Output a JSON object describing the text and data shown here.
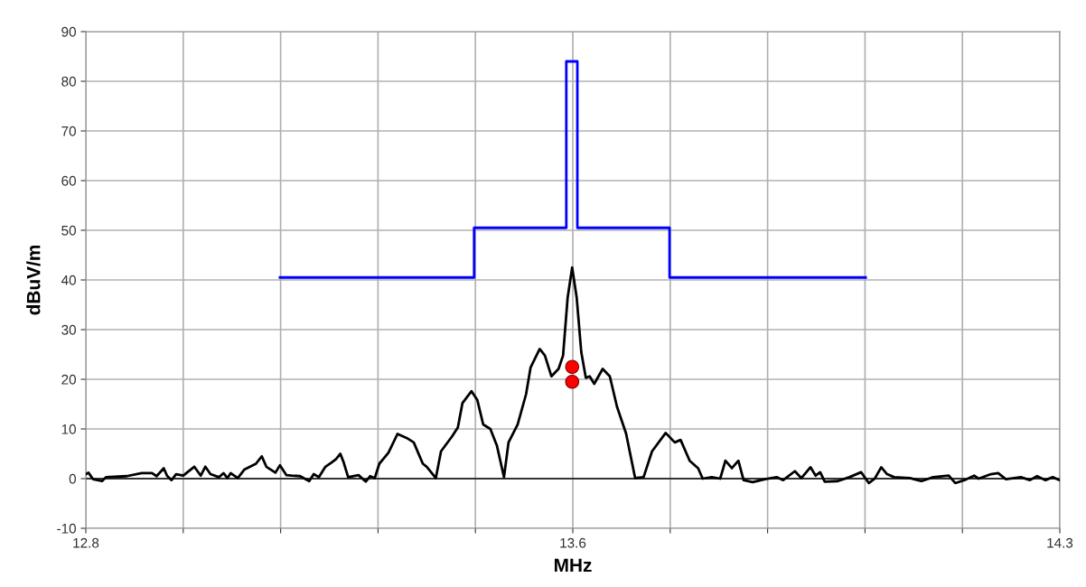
{
  "chart_data": {
    "type": "line",
    "xlabel": "MHz",
    "ylabel": "dBuV/m",
    "xlim": [
      12.8,
      14.3
    ],
    "xticks": [
      12.8,
      {
        "value": 12.95,
        "label": null
      },
      {
        "value": 13.1,
        "label": null
      },
      {
        "value": 13.25,
        "label": null
      },
      {
        "value": 13.4,
        "label": null
      },
      {
        "value": 13.55,
        "label": "13.6"
      },
      {
        "value": 13.7,
        "label": null
      },
      {
        "value": 13.85,
        "label": null
      },
      {
        "value": 14.0,
        "label": null
      },
      {
        "value": 14.15,
        "label": null
      },
      14.3
    ],
    "ylim": [
      -10,
      90
    ],
    "yticks": [
      -10,
      0,
      10,
      20,
      30,
      40,
      50,
      60,
      70,
      80,
      90
    ],
    "grid": true,
    "ref_lines": [
      {
        "axis": "y",
        "value": 0,
        "color": "#333333"
      }
    ],
    "series": [
      {
        "type": "step",
        "color": "#0000ff",
        "x": [
          13.099,
          13.398,
          13.54,
          13.557,
          13.699,
          14.001
        ],
        "values": [
          40.5,
          50.5,
          84,
          50.5,
          40.5,
          40.5
        ]
      },
      {
        "color": "#000000",
        "x": [
          12.8,
          12.804,
          12.811,
          12.825,
          12.831,
          12.863,
          12.886,
          12.902,
          12.909,
          12.92,
          12.925,
          12.932,
          12.939,
          12.95,
          12.967,
          12.977,
          12.984,
          12.992,
          13.005,
          13.012,
          13.018,
          13.023,
          13.034,
          13.044,
          13.053,
          13.062,
          13.071,
          13.078,
          13.085,
          13.092,
          13.099,
          13.109,
          13.117,
          13.13,
          13.144,
          13.151,
          13.159,
          13.169,
          13.178,
          13.185,
          13.192,
          13.197,
          13.204,
          13.22,
          13.231,
          13.238,
          13.245,
          13.252,
          13.266,
          13.28,
          13.294,
          13.305,
          13.319,
          13.325,
          13.339,
          13.347,
          13.364,
          13.373,
          13.38,
          13.394,
          13.403,
          13.412,
          13.423,
          13.433,
          13.444,
          13.451,
          13.465,
          13.478,
          13.485,
          13.499,
          13.507,
          13.517,
          13.528,
          13.535,
          13.542,
          13.549,
          13.556,
          13.563,
          13.57,
          13.576,
          13.583,
          13.596,
          13.607,
          13.618,
          13.632,
          13.646,
          13.659,
          13.672,
          13.693,
          13.707,
          13.716,
          13.73,
          13.743,
          13.75,
          13.764,
          13.777,
          13.785,
          13.795,
          13.805,
          13.813,
          13.827,
          13.846,
          13.864,
          13.874,
          13.892,
          13.902,
          13.916,
          13.924,
          13.931,
          13.938,
          13.958,
          13.976,
          13.994,
          14.006,
          14.015,
          14.025,
          14.034,
          14.045,
          14.069,
          14.087,
          14.105,
          14.129,
          14.139,
          14.153,
          14.168,
          14.175,
          14.194,
          14.205,
          14.217,
          14.24,
          14.254,
          14.265,
          14.278,
          14.289,
          14.3
        ],
        "values": [
          0.9,
          1.2,
          -0.1,
          -0.5,
          0.3,
          0.5,
          1.1,
          1.1,
          0.5,
          2.1,
          0.6,
          -0.3,
          0.9,
          0.6,
          2.4,
          0.6,
          2.4,
          0.9,
          0.3,
          1.1,
          0.1,
          1.1,
          0.1,
          1.8,
          2.4,
          3.0,
          4.5,
          2.4,
          1.8,
          1.2,
          2.7,
          0.7,
          0.6,
          0.5,
          -0.5,
          0.9,
          0.3,
          2.4,
          3.2,
          3.9,
          5.0,
          3.3,
          0.3,
          0.7,
          -0.6,
          0.5,
          0.1,
          3.0,
          5.2,
          9.0,
          8.2,
          7.3,
          3.0,
          2.4,
          0.1,
          5.5,
          8.5,
          10.3,
          15.2,
          17.6,
          15.8,
          10.9,
          10.0,
          6.7,
          0.3,
          7.3,
          10.9,
          17.0,
          22.4,
          26.1,
          24.8,
          20.6,
          22.1,
          24.8,
          36.4,
          42.5,
          36.4,
          25.5,
          20.3,
          20.6,
          19.1,
          22.1,
          20.6,
          14.5,
          9.1,
          0.1,
          0.3,
          5.5,
          9.2,
          7.3,
          7.8,
          3.6,
          2.1,
          0,
          0.3,
          0,
          3.6,
          2.1,
          3.6,
          -0.3,
          -0.7,
          -0.1,
          0.3,
          -0.3,
          1.5,
          0.1,
          2.3,
          0.6,
          1.3,
          -0.6,
          -0.5,
          0.3,
          1.3,
          -0.9,
          0,
          2.3,
          0.9,
          0.3,
          0.1,
          -0.5,
          0.3,
          0.6,
          -0.9,
          -0.3,
          0.6,
          0,
          0.9,
          1.1,
          -0.1,
          0.3,
          -0.3,
          0.5,
          -0.3,
          0.3,
          -0.3
        ]
      },
      {
        "type": "scatter",
        "color": "#ff0000",
        "marker": "circle",
        "x": [
          13.549,
          13.549
        ],
        "values": [
          22.5,
          19.5
        ]
      }
    ]
  }
}
